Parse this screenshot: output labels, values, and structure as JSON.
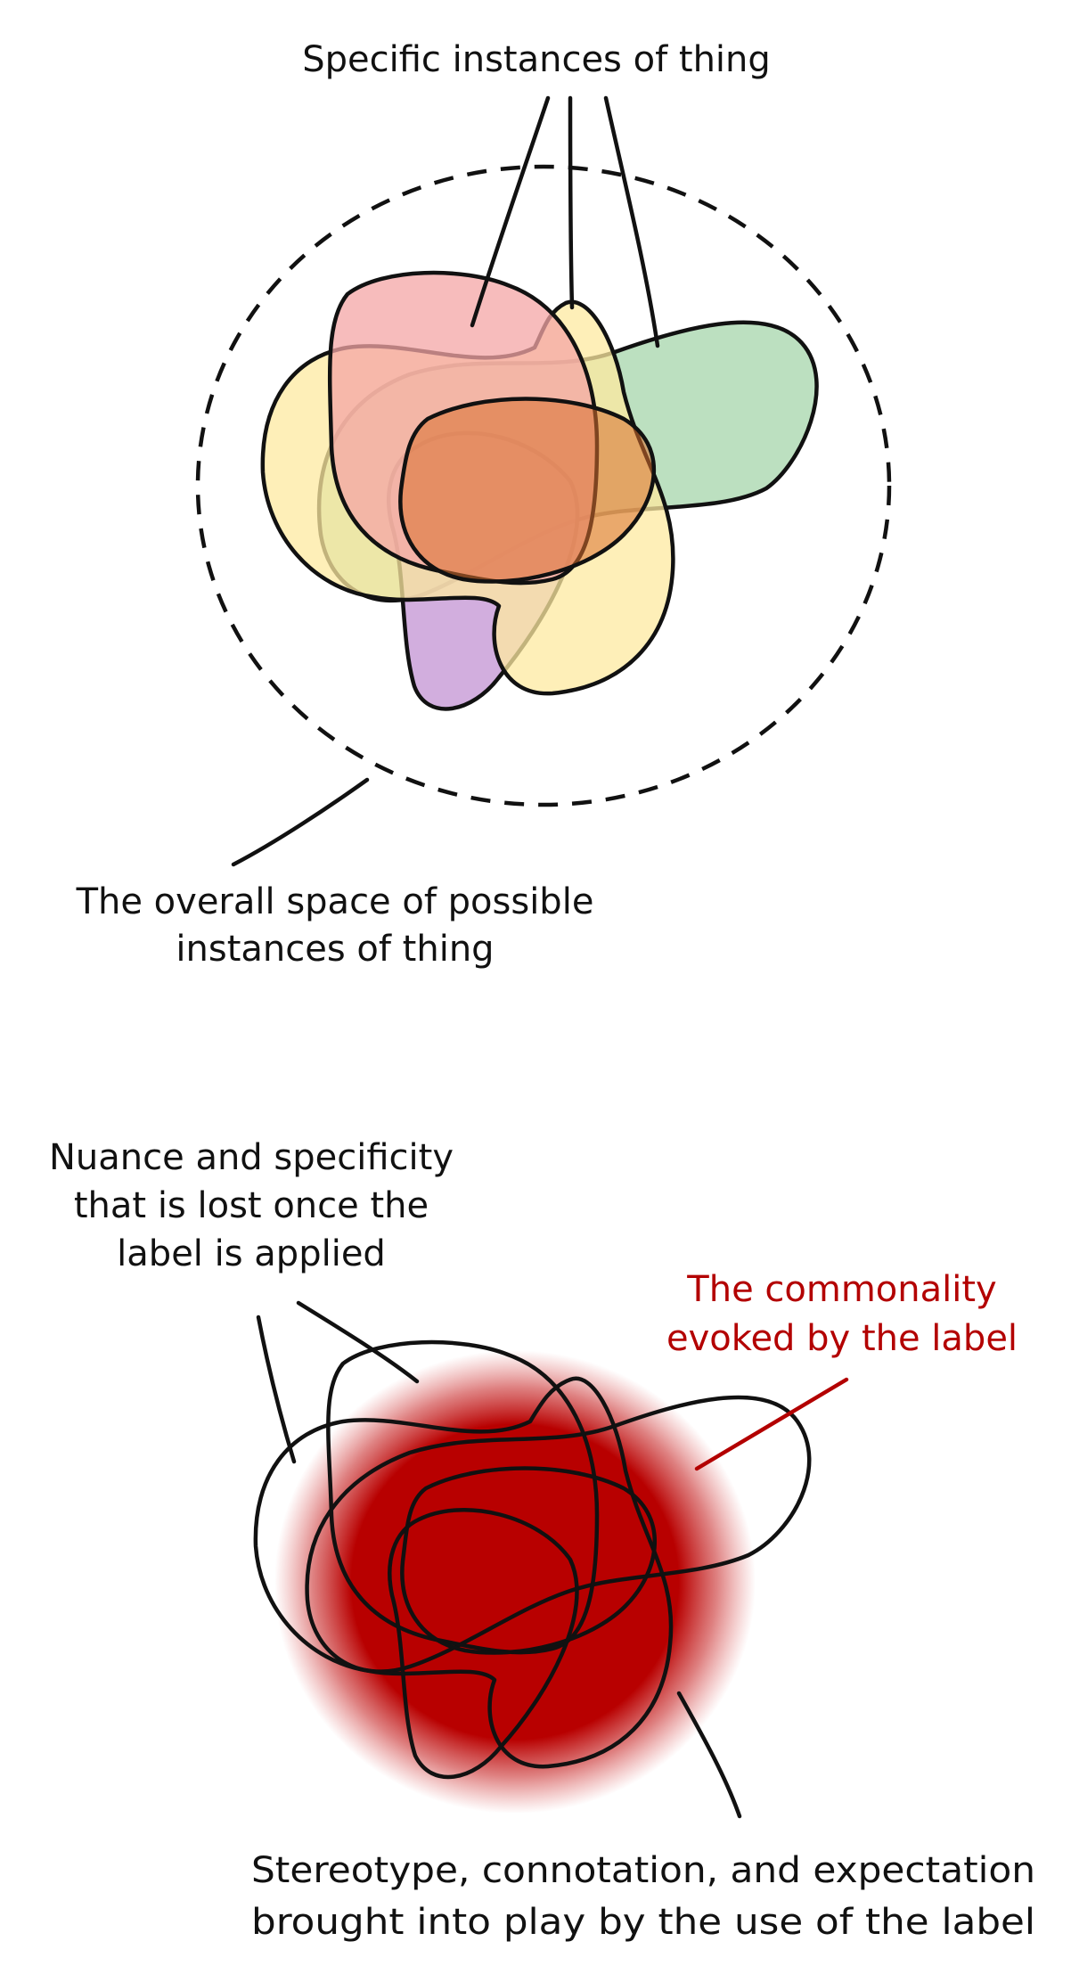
{
  "top_diagram": {
    "label_instances": "Specific instances of thing",
    "label_space_line1": "The overall space of possible",
    "label_space_line2": "instances of thing",
    "colors": {
      "pink": "#f4a6a6",
      "yellow": "#fde9a0",
      "green": "#9fd3a5",
      "purple": "#c79ad6",
      "orange": "#d9702e"
    }
  },
  "bottom_diagram": {
    "label_nuance_line1": "Nuance and specificity",
    "label_nuance_line2": "that is lost once the",
    "label_nuance_line3": "label is applied",
    "label_commonality_line1": "The commonality",
    "label_commonality_line2": "evoked by the label",
    "label_stereotype_line1": "Stereotype, connotation, and expectation",
    "label_stereotype_line2": "brought into play by the use of the label",
    "colors": {
      "commonality": "#b80000",
      "commonality_label": "#b30000"
    }
  }
}
